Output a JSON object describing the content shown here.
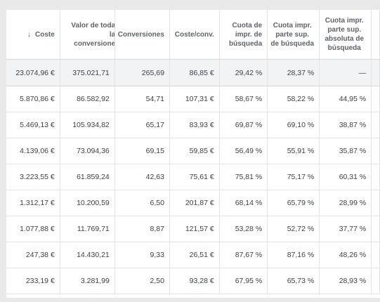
{
  "table": {
    "headers": [
      {
        "arrow": "↓",
        "label": "Coste"
      },
      {
        "label": "Valor de todas las conversiones"
      },
      {
        "label": "Conversiones"
      },
      {
        "label": "Coste/conv."
      },
      {
        "label": "Cuota de impr. de búsqueda"
      },
      {
        "label": "Cuota impr. parte sup. de búsqueda"
      },
      {
        "label": "Cuota impr. parte sup. absoluta de búsqueda"
      }
    ],
    "total": [
      "23.074,96 €",
      "375.021,71",
      "265,69",
      "86,85 €",
      "29,42 %",
      "28,37 %",
      "—"
    ],
    "rows": [
      [
        "5.870,86 €",
        "86.582,92",
        "54,71",
        "107,31 €",
        "58,67 %",
        "58,22 %",
        "44,95 %"
      ],
      [
        "5.469,13 €",
        "105.934,82",
        "65,17",
        "83,93 €",
        "69,87 %",
        "69,10 %",
        "38,87 %"
      ],
      [
        "4.139,06 €",
        "73.094,36",
        "69,15",
        "59,85 €",
        "56,49 %",
        "55,91 %",
        "35,87 %"
      ],
      [
        "3.223,55 €",
        "61.859,24",
        "42,63",
        "75,61 €",
        "75,81 %",
        "75,17 %",
        "60,31 %"
      ],
      [
        "1.312,17 €",
        "10.200,59",
        "6,50",
        "201,87 €",
        "68,14 %",
        "65,79 %",
        "28,99 %"
      ],
      [
        "1.077,88 €",
        "11.769,71",
        "8,87",
        "121,57 €",
        "53,28 %",
        "52,72 %",
        "37,77 %"
      ],
      [
        "247,38 €",
        "14.430,21",
        "9,33",
        "26,51 €",
        "87,67 %",
        "87,16 %",
        "48,26 %"
      ],
      [
        "233,19 €",
        "3.281,99",
        "2,50",
        "93,28 €",
        "67,95 %",
        "65,73 %",
        "28,93 %"
      ]
    ]
  }
}
